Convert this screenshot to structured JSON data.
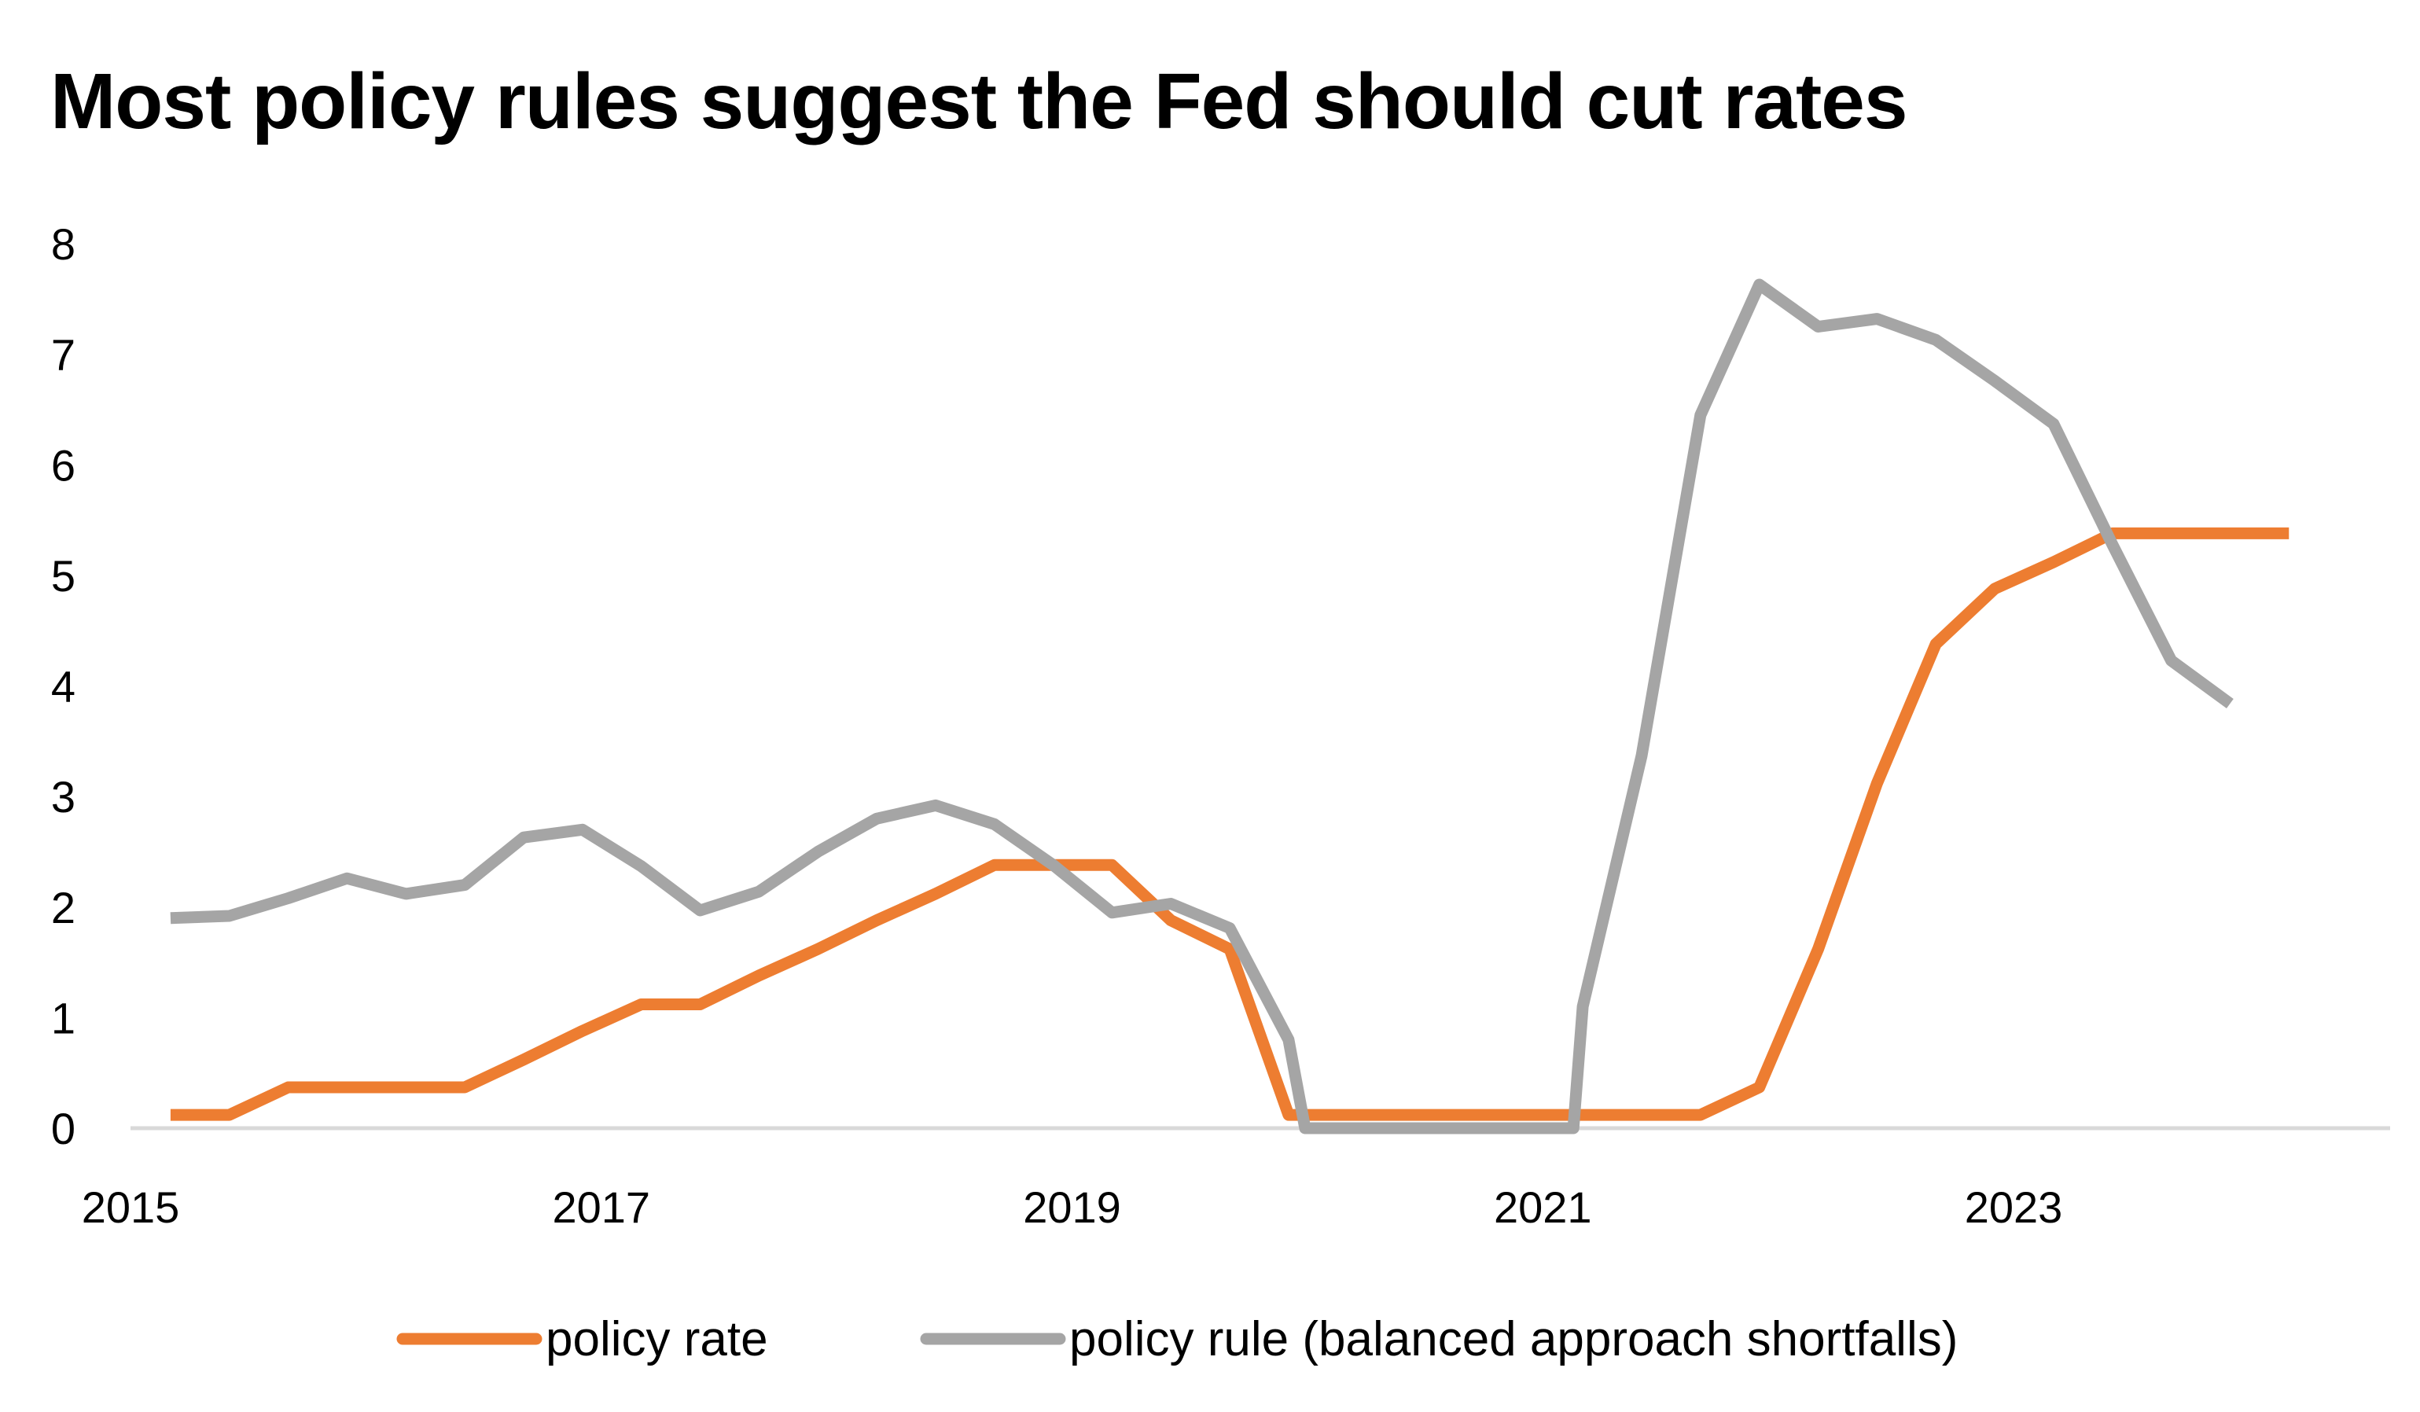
{
  "chart_data": {
    "type": "line",
    "title": "Most policy rules suggest the Fed should cut rates",
    "xlabel": "",
    "ylabel": "",
    "xlim": [
      2015.0,
      2024.6
    ],
    "ylim": [
      0,
      8
    ],
    "x_ticks": [
      "2015",
      "2017",
      "2019",
      "2021",
      "2023"
    ],
    "y_ticks": [
      "0",
      "1",
      "2",
      "3",
      "4",
      "5",
      "6",
      "7",
      "8"
    ],
    "grid": false,
    "legend_position": "bottom",
    "series": [
      {
        "name": "policy rate",
        "color": "#ED7D31",
        "points": [
          [
            2015.17,
            0.12
          ],
          [
            2015.42,
            0.12
          ],
          [
            2015.67,
            0.37
          ],
          [
            2015.92,
            0.37
          ],
          [
            2016.17,
            0.37
          ],
          [
            2016.42,
            0.37
          ],
          [
            2016.67,
            0.62
          ],
          [
            2016.92,
            0.88
          ],
          [
            2017.17,
            1.12
          ],
          [
            2017.42,
            1.12
          ],
          [
            2017.67,
            1.38
          ],
          [
            2017.92,
            1.62
          ],
          [
            2018.17,
            1.88
          ],
          [
            2018.42,
            2.12
          ],
          [
            2018.67,
            2.38
          ],
          [
            2018.92,
            2.38
          ],
          [
            2019.17,
            2.38
          ],
          [
            2019.42,
            1.88
          ],
          [
            2019.67,
            1.62
          ],
          [
            2019.92,
            0.12
          ],
          [
            2020.17,
            0.12
          ],
          [
            2020.42,
            0.12
          ],
          [
            2020.67,
            0.12
          ],
          [
            2020.92,
            0.12
          ],
          [
            2021.17,
            0.12
          ],
          [
            2021.42,
            0.12
          ],
          [
            2021.67,
            0.12
          ],
          [
            2021.92,
            0.37
          ],
          [
            2022.17,
            1.62
          ],
          [
            2022.42,
            3.12
          ],
          [
            2022.67,
            4.38
          ],
          [
            2022.92,
            4.88
          ],
          [
            2023.17,
            5.12
          ],
          [
            2023.42,
            5.38
          ],
          [
            2023.67,
            5.38
          ],
          [
            2023.92,
            5.38
          ],
          [
            2024.17,
            5.38
          ]
        ]
      },
      {
        "name": "policy rule (balanced approach shortfalls)",
        "color": "#A5A5A5",
        "points": [
          [
            2015.17,
            1.9
          ],
          [
            2015.42,
            1.92
          ],
          [
            2015.67,
            2.08
          ],
          [
            2015.92,
            2.26
          ],
          [
            2016.17,
            2.12
          ],
          [
            2016.42,
            2.2
          ],
          [
            2016.67,
            2.63
          ],
          [
            2016.92,
            2.7
          ],
          [
            2017.17,
            2.37
          ],
          [
            2017.42,
            1.97
          ],
          [
            2017.67,
            2.14
          ],
          [
            2017.92,
            2.5
          ],
          [
            2018.17,
            2.8
          ],
          [
            2018.42,
            2.92
          ],
          [
            2018.67,
            2.75
          ],
          [
            2018.92,
            2.38
          ],
          [
            2019.17,
            1.95
          ],
          [
            2019.42,
            2.03
          ],
          [
            2019.67,
            1.81
          ],
          [
            2019.92,
            0.8
          ],
          [
            2019.99,
            0.0
          ],
          [
            2021.13,
            0.0
          ],
          [
            2021.17,
            1.1
          ],
          [
            2021.42,
            3.37
          ],
          [
            2021.67,
            6.45
          ],
          [
            2021.92,
            7.63
          ],
          [
            2022.17,
            7.25
          ],
          [
            2022.42,
            7.32
          ],
          [
            2022.67,
            7.13
          ],
          [
            2022.92,
            6.76
          ],
          [
            2023.17,
            6.37
          ],
          [
            2023.42,
            5.28
          ],
          [
            2023.67,
            4.23
          ],
          [
            2023.92,
            3.84
          ]
        ]
      }
    ]
  }
}
